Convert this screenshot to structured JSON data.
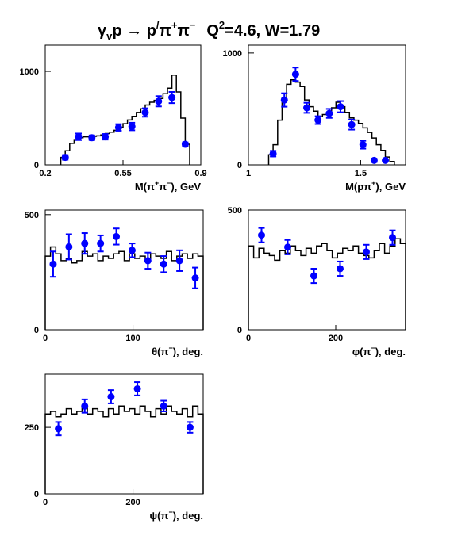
{
  "title": {
    "gamma": "γ",
    "gamma_sub": "v",
    "reaction_mid": "p → p",
    "prime": "/",
    "pi1": "π",
    "pi1_sup": "+",
    "pi2": "π",
    "pi2_sup": "−",
    "q2_prefix": "Q",
    "q2_sup": "2",
    "q2_rest": "=4.6, W=1.79"
  },
  "chart_data": [
    {
      "type": "line",
      "xlabel_parts": [
        "M(π",
        "+",
        "π",
        "−",
        "), GeV"
      ],
      "xticks": [
        {
          "v": 0.2,
          "label": "0.2"
        },
        {
          "v": 0.55,
          "label": "0.55"
        },
        {
          "v": 0.9,
          "label": "0.9"
        }
      ],
      "yticks": [
        {
          "v": 0,
          "label": "0"
        },
        {
          "v": 1000,
          "label": "1000"
        }
      ],
      "xlim": [
        0.2,
        0.9
      ],
      "ylim": [
        0,
        1280
      ],
      "model_step": {
        "edges": [
          0.27,
          0.29,
          0.31,
          0.33,
          0.35,
          0.37,
          0.39,
          0.41,
          0.43,
          0.45,
          0.47,
          0.49,
          0.51,
          0.53,
          0.55,
          0.57,
          0.59,
          0.61,
          0.63,
          0.65,
          0.67,
          0.69,
          0.71,
          0.73,
          0.75,
          0.77,
          0.79,
          0.81,
          0.83,
          0.85
        ],
        "values": [
          80,
          150,
          230,
          270,
          290,
          300,
          300,
          305,
          310,
          320,
          335,
          350,
          370,
          400,
          440,
          480,
          520,
          560,
          600,
          640,
          670,
          690,
          710,
          760,
          820,
          960,
          780,
          500,
          220
        ]
      },
      "data_points": {
        "x": [
          0.29,
          0.35,
          0.41,
          0.47,
          0.53,
          0.59,
          0.65,
          0.71,
          0.77,
          0.83
        ],
        "y": [
          80,
          300,
          290,
          300,
          400,
          410,
          560,
          680,
          720,
          220
        ],
        "err": [
          25,
          35,
          25,
          30,
          35,
          40,
          45,
          55,
          60,
          20
        ]
      }
    },
    {
      "type": "line",
      "xlabel_parts": [
        "M(pπ",
        "+",
        "), GeV"
      ],
      "xticks": [
        {
          "v": 1.0,
          "label": "1"
        },
        {
          "v": 1.5,
          "label": "1.5"
        }
      ],
      "yticks": [
        {
          "v": 0,
          "label": "0"
        },
        {
          "v": 1000,
          "label": "1000"
        }
      ],
      "xlim": [
        1.0,
        1.7
      ],
      "ylim": [
        0,
        1070
      ],
      "model_step": {
        "edges": [
          1.09,
          1.11,
          1.13,
          1.15,
          1.17,
          1.19,
          1.21,
          1.23,
          1.25,
          1.27,
          1.29,
          1.31,
          1.33,
          1.35,
          1.37,
          1.39,
          1.41,
          1.43,
          1.45,
          1.47,
          1.49,
          1.51,
          1.53,
          1.55,
          1.57,
          1.59,
          1.61,
          1.63,
          1.65
        ],
        "values": [
          90,
          180,
          400,
          600,
          720,
          760,
          740,
          700,
          580,
          520,
          480,
          430,
          450,
          470,
          510,
          560,
          520,
          470,
          420,
          400,
          370,
          330,
          290,
          240,
          180,
          130,
          70,
          30
        ]
      },
      "data_points": {
        "x": [
          1.11,
          1.16,
          1.21,
          1.26,
          1.31,
          1.36,
          1.41,
          1.46,
          1.51,
          1.56,
          1.61
        ],
        "y": [
          100,
          580,
          810,
          510,
          400,
          460,
          520,
          360,
          180,
          40,
          40
        ],
        "err": [
          25,
          60,
          60,
          45,
          35,
          40,
          50,
          45,
          35,
          15,
          10
        ]
      }
    },
    {
      "type": "line",
      "xlabel_parts": [
        "θ(π",
        "−",
        "), deg."
      ],
      "xticks": [
        {
          "v": 0,
          "label": "0"
        },
        {
          "v": 100,
          "label": "100"
        }
      ],
      "yticks": [
        {
          "v": 0,
          "label": "0"
        },
        {
          "v": 500,
          "label": "500"
        }
      ],
      "xlim": [
        0,
        180
      ],
      "ylim": [
        0,
        520
      ],
      "model_step": {
        "edges": [
          0,
          6,
          12,
          18,
          24,
          30,
          36,
          42,
          48,
          54,
          60,
          66,
          72,
          78,
          84,
          90,
          96,
          102,
          108,
          114,
          120,
          126,
          132,
          138,
          144,
          150,
          156,
          162,
          168,
          174,
          180
        ],
        "values": [
          320,
          360,
          330,
          300,
          310,
          290,
          300,
          340,
          320,
          330,
          300,
          320,
          310,
          330,
          340,
          300,
          330,
          310,
          320,
          300,
          330,
          320,
          310,
          340,
          300,
          320,
          330,
          310,
          330,
          320
        ]
      },
      "data_points": {
        "x": [
          9,
          27,
          45,
          63,
          81,
          99,
          117,
          135,
          153,
          171
        ],
        "y": [
          285,
          360,
          375,
          375,
          405,
          345,
          300,
          285,
          300,
          225
        ],
        "err": [
          55,
          55,
          45,
          35,
          35,
          30,
          35,
          35,
          45,
          45
        ]
      }
    },
    {
      "type": "line",
      "xlabel_parts": [
        "φ(π",
        "−",
        "), deg."
      ],
      "xticks": [
        {
          "v": 0,
          "label": "0"
        },
        {
          "v": 200,
          "label": "200"
        }
      ],
      "yticks": [
        {
          "v": 0,
          "label": "0"
        },
        {
          "v": 500,
          "label": "500"
        }
      ],
      "xlim": [
        0,
        360
      ],
      "ylim": [
        0,
        500
      ],
      "model_step": {
        "edges": [
          0,
          12,
          24,
          36,
          48,
          60,
          72,
          84,
          96,
          108,
          120,
          132,
          144,
          156,
          168,
          180,
          192,
          204,
          216,
          228,
          240,
          252,
          264,
          276,
          288,
          300,
          312,
          324,
          336,
          348,
          360
        ],
        "values": [
          350,
          300,
          340,
          320,
          310,
          290,
          330,
          320,
          350,
          330,
          310,
          340,
          320,
          350,
          360,
          330,
          300,
          320,
          340,
          330,
          350,
          320,
          310,
          300,
          330,
          360,
          320,
          350,
          380,
          360
        ]
      },
      "data_points": {
        "x": [
          30,
          90,
          150,
          210,
          270,
          330
        ],
        "y": [
          395,
          345,
          225,
          255,
          325,
          385
        ],
        "err": [
          30,
          30,
          30,
          30,
          30,
          30
        ]
      }
    },
    {
      "type": "line",
      "xlabel_parts": [
        "ψ(π",
        "−",
        "), deg."
      ],
      "xticks": [
        {
          "v": 0,
          "label": "0"
        },
        {
          "v": 200,
          "label": "200"
        }
      ],
      "yticks": [
        {
          "v": 0,
          "label": "0"
        },
        {
          "v": 250,
          "label": "250"
        }
      ],
      "xlim": [
        0,
        360
      ],
      "ylim": [
        0,
        450
      ],
      "model_step": {
        "edges": [
          0,
          12,
          24,
          36,
          48,
          60,
          72,
          84,
          96,
          108,
          120,
          132,
          144,
          156,
          168,
          180,
          192,
          204,
          216,
          228,
          240,
          252,
          264,
          276,
          288,
          300,
          312,
          324,
          336,
          348,
          360
        ],
        "values": [
          300,
          310,
          290,
          300,
          320,
          300,
          310,
          330,
          300,
          320,
          310,
          290,
          320,
          300,
          330,
          310,
          320,
          300,
          330,
          310,
          290,
          320,
          300,
          330,
          310,
          300,
          320,
          290,
          330,
          300
        ]
      },
      "data_points": {
        "x": [
          30,
          90,
          150,
          210,
          270,
          330
        ],
        "y": [
          245,
          330,
          365,
          395,
          330,
          250
        ],
        "err": [
          25,
          25,
          25,
          25,
          20,
          20
        ]
      }
    }
  ]
}
